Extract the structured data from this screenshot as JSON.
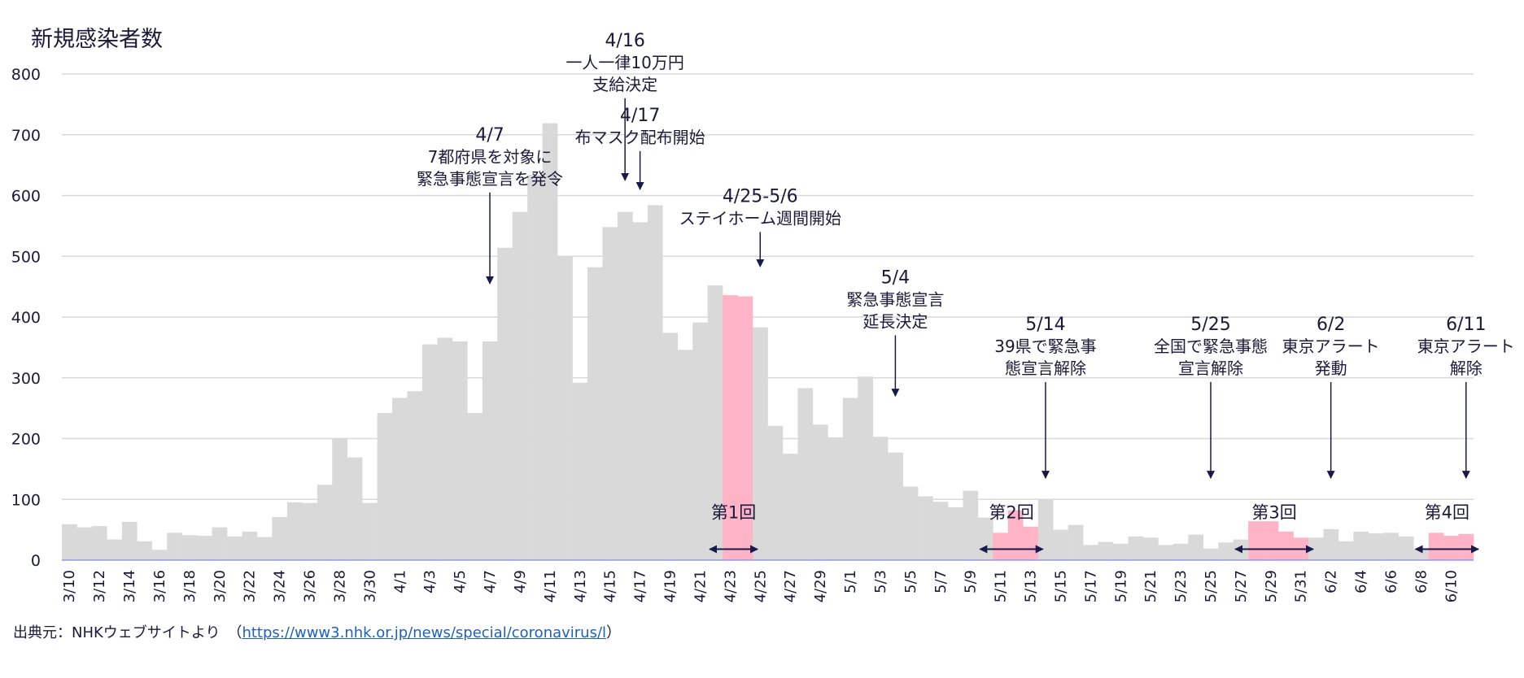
{
  "chart_data": {
    "type": "bar",
    "title": "新規感染者数",
    "ylim": [
      0,
      800
    ],
    "yticks": [
      0,
      100,
      200,
      300,
      400,
      500,
      600,
      700,
      800
    ],
    "grid": true,
    "categories": [
      "3/10",
      "3/11",
      "3/12",
      "3/13",
      "3/14",
      "3/15",
      "3/16",
      "3/17",
      "3/18",
      "3/19",
      "3/20",
      "3/21",
      "3/22",
      "3/23",
      "3/24",
      "3/25",
      "3/26",
      "3/27",
      "3/28",
      "3/29",
      "3/30",
      "3/31",
      "4/1",
      "4/2",
      "4/3",
      "4/4",
      "4/5",
      "4/6",
      "4/7",
      "4/8",
      "4/9",
      "4/10",
      "4/11",
      "4/12",
      "4/13",
      "4/14",
      "4/15",
      "4/16",
      "4/17",
      "4/18",
      "4/19",
      "4/20",
      "4/21",
      "4/22",
      "4/23",
      "4/24",
      "4/25",
      "4/26",
      "4/27",
      "4/28",
      "4/29",
      "4/30",
      "5/1",
      "5/2",
      "5/3",
      "5/4",
      "5/5",
      "5/6",
      "5/7",
      "5/8",
      "5/9",
      "5/10",
      "5/11",
      "5/12",
      "5/13",
      "5/14",
      "5/15",
      "5/16",
      "5/17",
      "5/18",
      "5/19",
      "5/20",
      "5/21",
      "5/22",
      "5/23",
      "5/24",
      "5/25",
      "5/26",
      "5/27",
      "5/28",
      "5/29",
      "5/30",
      "5/31",
      "6/1",
      "6/2",
      "6/3",
      "6/4",
      "6/5",
      "6/6",
      "6/7",
      "6/8",
      "6/9",
      "6/10",
      "6/11"
    ],
    "values": [
      59,
      54,
      56,
      34,
      63,
      31,
      17,
      45,
      41,
      40,
      54,
      39,
      47,
      38,
      71,
      95,
      94,
      124,
      201,
      169,
      94,
      242,
      267,
      278,
      355,
      366,
      360,
      242,
      360,
      514,
      573,
      634,
      719,
      500,
      292,
      482,
      548,
      573,
      556,
      584,
      374,
      346,
      391,
      452,
      436,
      434,
      383,
      221,
      175,
      283,
      223,
      202,
      267,
      302,
      203,
      177,
      121,
      105,
      96,
      87,
      114,
      70,
      45,
      82,
      55,
      99,
      50,
      58,
      25,
      30,
      27,
      39,
      37,
      25,
      27,
      42,
      19,
      29,
      34,
      64,
      64,
      47,
      37,
      37,
      51,
      31,
      47,
      44,
      45,
      39,
      18,
      45,
      40,
      43
    ],
    "highlight_categories": [
      "4/23",
      "4/24",
      "5/11",
      "5/12",
      "5/13",
      "5/28",
      "5/29",
      "5/30",
      "5/31",
      "6/9",
      "6/10",
      "6/11"
    ],
    "tick_labels": [
      "3/10",
      "3/12",
      "3/14",
      "3/16",
      "3/18",
      "3/20",
      "3/22",
      "3/24",
      "3/26",
      "3/28",
      "3/30",
      "4/1",
      "4/3",
      "4/5",
      "4/7",
      "4/9",
      "4/11",
      "4/13",
      "4/15",
      "4/17",
      "4/19",
      "4/21",
      "4/23",
      "4/25",
      "4/27",
      "4/29",
      "5/1",
      "5/3",
      "5/5",
      "5/7",
      "5/9",
      "5/11",
      "5/13",
      "5/15",
      "5/17",
      "5/19",
      "5/21",
      "5/23",
      "5/25",
      "5/27",
      "5/29",
      "5/31",
      "6/2",
      "6/4",
      "6/6",
      "6/8",
      "6/10"
    ],
    "colors": {
      "bar": "#d9d9d9",
      "highlight": "#ffb3c7",
      "grid": "#d9d9d9",
      "axis": "#9999dd",
      "arrow": "#1a1a4a"
    },
    "annotations": [
      {
        "lines": [
          "4/7",
          "7都府県を対象に",
          "緊急事態宣言を発令"
        ],
        "category": "4/7",
        "arrow_from": 605,
        "arrow_to": 455
      },
      {
        "lines": [
          "4/16",
          "一人一律10万円",
          "支給決定"
        ],
        "category": "4/16",
        "arrow_from": 760,
        "arrow_to": 625
      },
      {
        "lines": [
          "4/17",
          "布マスク配布開始"
        ],
        "category": "4/17",
        "arrow_from": 673,
        "arrow_to": 610
      },
      {
        "lines": [
          "4/25-5/6",
          "ステイホーム週間開始"
        ],
        "category": "4/25",
        "arrow_from": 540,
        "arrow_to": 483
      },
      {
        "lines": [
          "5/4",
          "緊急事態宣言",
          "延長決定"
        ],
        "category": "5/4",
        "arrow_from": 370,
        "arrow_to": 270
      },
      {
        "lines": [
          "5/14",
          "39県で緊急事",
          "態宣言解除"
        ],
        "category": "5/14",
        "arrow_from": 293,
        "arrow_to": 135
      },
      {
        "lines": [
          "5/25",
          "全国で緊急事態",
          "宣言解除"
        ],
        "category": "5/25",
        "arrow_from": 293,
        "arrow_to": 135
      },
      {
        "lines": [
          "6/2",
          "東京アラート",
          "発動"
        ],
        "category": "6/2",
        "arrow_from": 293,
        "arrow_to": 135
      },
      {
        "lines": [
          "6/11",
          "東京アラート",
          "解除"
        ],
        "category": "6/11",
        "arrow_from": 293,
        "arrow_to": 135
      }
    ],
    "periods": [
      {
        "label": "第1回",
        "start": "4/23",
        "end": "4/24"
      },
      {
        "label": "第2回",
        "start": "5/11",
        "end": "5/13"
      },
      {
        "label": "第3回",
        "start": "5/28",
        "end": "5/31"
      },
      {
        "label": "第4回",
        "start": "6/9",
        "end": "6/11"
      }
    ]
  },
  "source": {
    "prefix": "出典元：NHKウェブサイトより　（",
    "url": "https://www3.nhk.or.jp/news/special/coronavirus/l",
    "suffix": "）"
  }
}
